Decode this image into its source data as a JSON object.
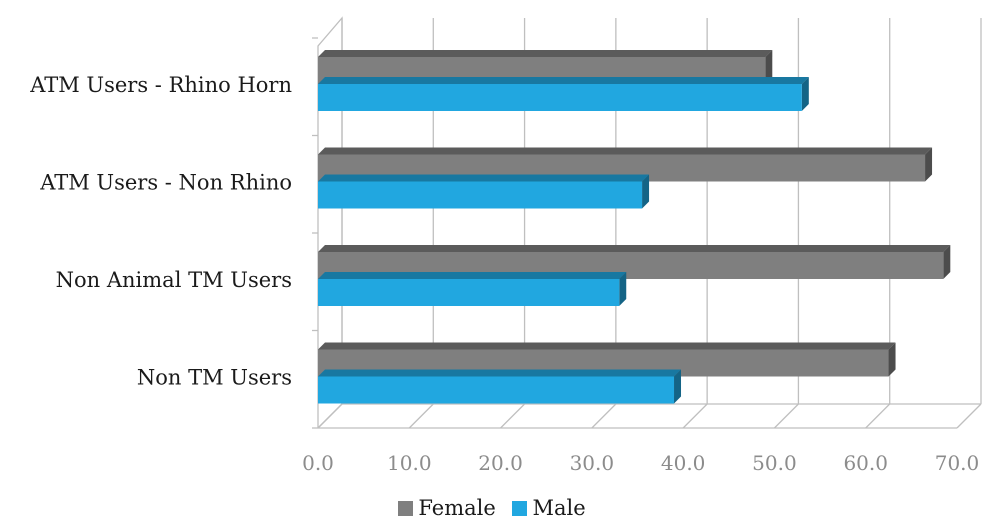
{
  "chart_data": {
    "type": "bar",
    "orientation": "horizontal",
    "categories": [
      "ATM Users - Rhino Horn",
      "ATM Users - Non Rhino",
      "Non Animal TM Users",
      "Non TM Users"
    ],
    "series": [
      {
        "name": "Female",
        "values": [
          49,
          66.5,
          68.5,
          62.5
        ],
        "color": "#7f7f7f"
      },
      {
        "name": "Male",
        "values": [
          53,
          35.5,
          33,
          39
        ],
        "color": "#21a7e0"
      }
    ],
    "xlim": [
      0,
      70
    ],
    "xticks": [
      "0.0",
      "10.0",
      "20.0",
      "30.0",
      "40.0",
      "50.0",
      "60.0",
      "70.0"
    ],
    "grid": true,
    "legend_position": "bottom"
  }
}
